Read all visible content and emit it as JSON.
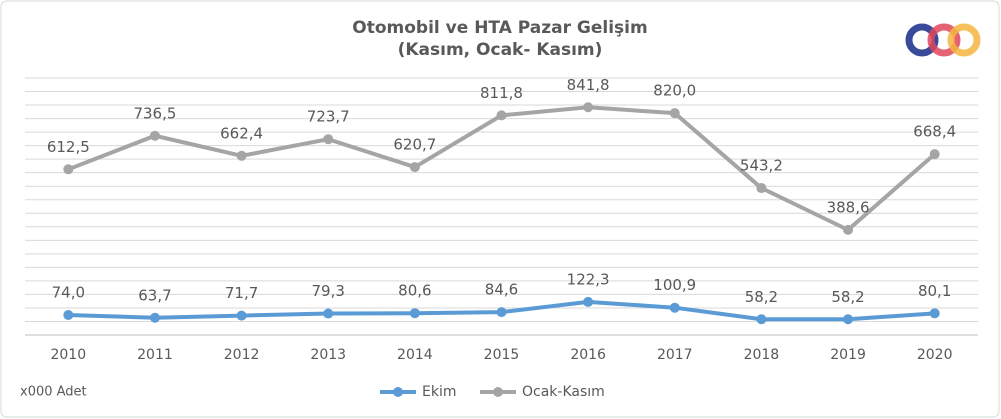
{
  "chart_data": {
    "type": "line",
    "title": "Otomobil ve HTA Pazar Gelişim",
    "subtitle": "(Kasım, Ocak- Kasım)",
    "note": "x000 Adet",
    "categories": [
      "2010",
      "2011",
      "2012",
      "2013",
      "2014",
      "2015",
      "2016",
      "2017",
      "2018",
      "2019",
      "2020"
    ],
    "series": [
      {
        "name": "Ekim",
        "color": "#5b9bd5",
        "values": [
          74.0,
          63.7,
          71.7,
          79.3,
          80.6,
          84.6,
          122.3,
          100.9,
          58.2,
          58.2,
          80.1
        ],
        "value_labels": [
          "74,0",
          "63,7",
          "71,7",
          "79,3",
          "80,6",
          "84,6",
          "122,3",
          "100,9",
          "58,2",
          "58,2",
          "80,1"
        ]
      },
      {
        "name": "Ocak-Kasım",
        "color": "#a5a5a5",
        "values": [
          612.5,
          736.5,
          662.4,
          723.7,
          620.7,
          811.8,
          841.8,
          820.0,
          543.2,
          388.6,
          668.4
        ],
        "value_labels": [
          "612,5",
          "736,5",
          "662,4",
          "723,7",
          "620,7",
          "811,8",
          "841,8",
          "820,0",
          "543,2",
          "388,6",
          "668,4"
        ]
      }
    ],
    "ylim": [
      0,
      950
    ],
    "yticks": [
      0,
      50,
      100,
      150,
      200,
      250,
      300,
      350,
      400,
      450,
      500,
      550,
      600,
      650,
      700,
      750,
      800,
      850,
      900,
      950
    ],
    "grid": true,
    "legend": "bottom"
  }
}
